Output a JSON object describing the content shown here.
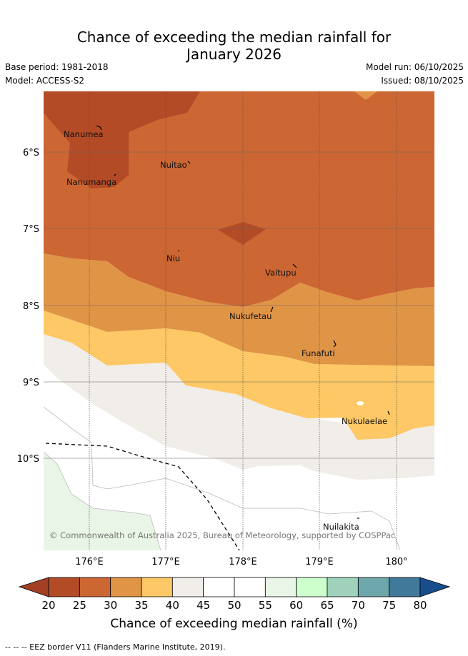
{
  "header": {
    "title_line1": "Chance of exceeding the median rainfall for",
    "title_line2": "January 2026",
    "base_period": "Base period: 1981-2018",
    "model": "Model: ACCESS-S2",
    "model_run": "Model run: 06/10/2025",
    "issued": "Issued: 08/10/2025"
  },
  "map": {
    "lat_labels": [
      "6°S",
      "7°S",
      "8°S",
      "9°S",
      "10°S"
    ],
    "lon_labels": [
      "176°E",
      "177°E",
      "178°E",
      "179°E",
      "180°"
    ],
    "places": [
      "Nanumea",
      "Nuitao",
      "Nanumanga",
      "Niu",
      "Vaitupu",
      "Nukufetau",
      "Funafuti",
      "Nukulaelae",
      "Nuilakita"
    ],
    "copyright": "© Commonwealth of Australia 2025, Bureau of Meteorology, supported by COSPPac"
  },
  "colorbar": {
    "ticks": [
      "20",
      "25",
      "30",
      "35",
      "40",
      "45",
      "50",
      "55",
      "60",
      "65",
      "70",
      "75",
      "80"
    ],
    "colors": [
      "#b34b26",
      "#cc6633",
      "#e09446",
      "#fdc865",
      "#f1ede8",
      "#ffffff",
      "#ffffff",
      "#e9f5e6",
      "#ccffcc",
      "#9fd1bb",
      "#6ea7ab",
      "#41799a"
    ],
    "under_color": "#a33f22",
    "over_color": "#174d8c",
    "label": "Chance of exceeding median rainfall (%)"
  },
  "footer": {
    "eez_note": "-- -- -- EEZ border V11 (Flanders Marine Institute, 2019)."
  }
}
